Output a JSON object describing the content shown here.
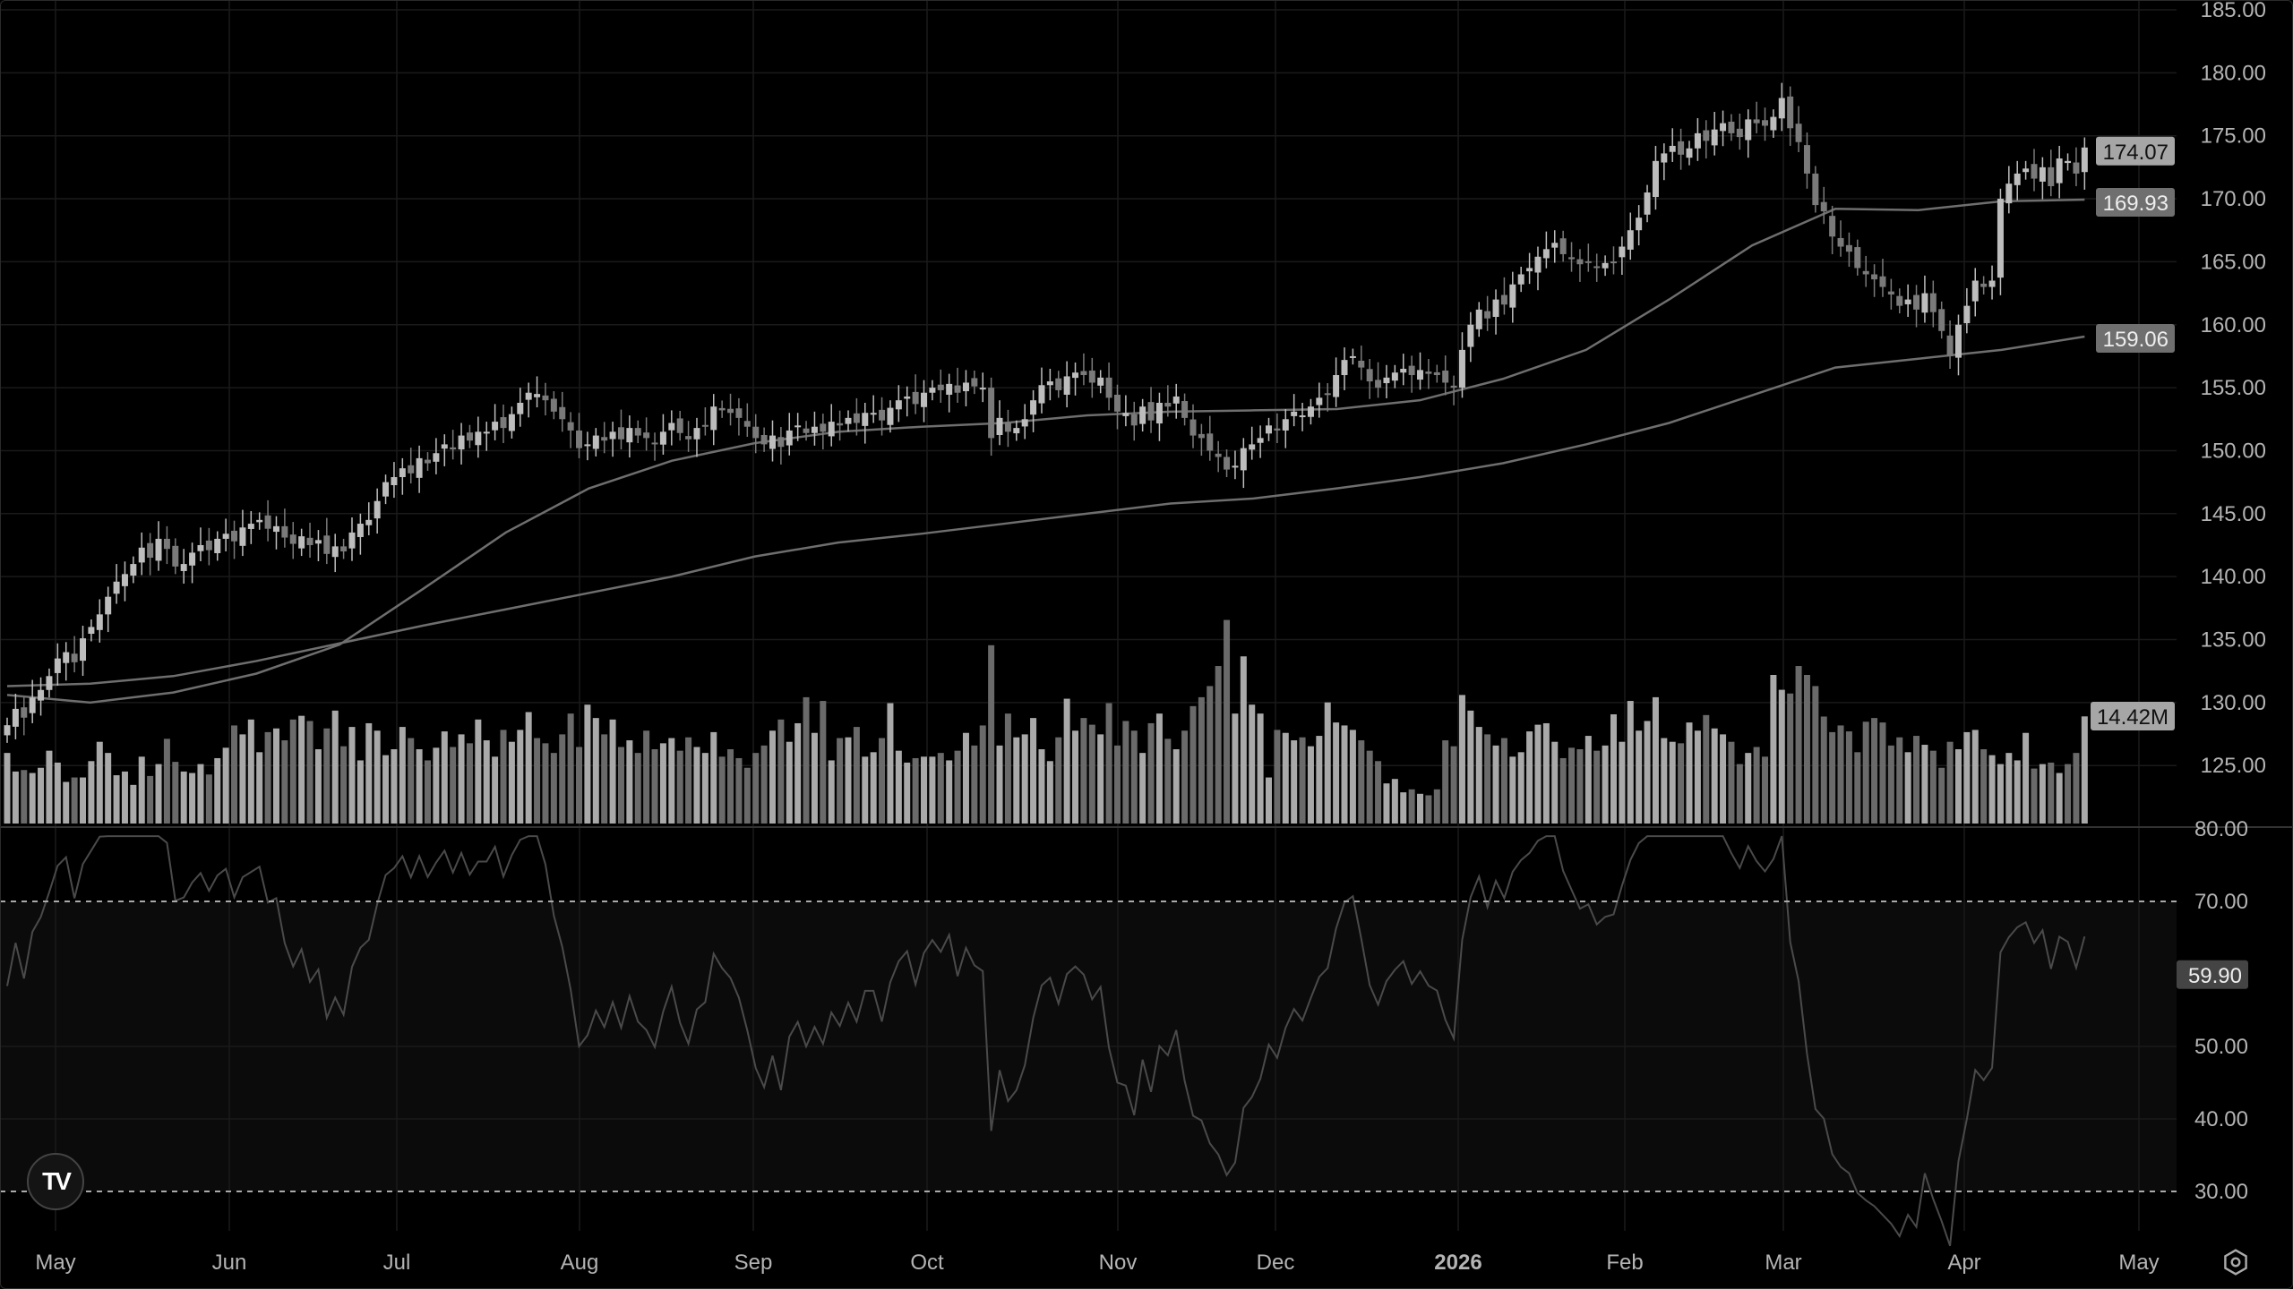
{
  "chart_data": {
    "type": "candlestick",
    "price_axis": {
      "ticks": [
        "185.00",
        "180.00",
        "175.00",
        "170.00",
        "165.00",
        "160.00",
        "155.00",
        "150.00",
        "145.00",
        "140.00",
        "135.00",
        "130.00",
        "125.00"
      ],
      "range": [
        123.5,
        185
      ]
    },
    "time_axis": {
      "ticks": [
        "May",
        "Jun",
        "Jul",
        "Aug",
        "Sep",
        "Oct",
        "Nov",
        "Dec",
        "2026",
        "Feb",
        "Mar",
        "Apr",
        "May"
      ],
      "bold_tick": "2026"
    },
    "closes": [
      128.2,
      129.5,
      128.8,
      130.4,
      131.0,
      132.1,
      133.5,
      134.0,
      133.2,
      135.1,
      136.0,
      137.0,
      138.4,
      139.6,
      140.2,
      141.0,
      142.3,
      141.5,
      143.0,
      142.2,
      140.8,
      141.0,
      141.9,
      142.5,
      142.1,
      143.0,
      143.4,
      142.8,
      143.9,
      144.2,
      144.5,
      143.8,
      144.0,
      143.1,
      142.6,
      143.2,
      142.5,
      142.9,
      141.8,
      142.4,
      142.0,
      143.5,
      144.2,
      144.5,
      146.0,
      147.5,
      147.9,
      148.6,
      148.2,
      149.4,
      149.0,
      149.8,
      150.5,
      150.1,
      151.2,
      150.8,
      151.5,
      151.5,
      152.3,
      151.8,
      152.9,
      153.8,
      154.6,
      154.5,
      154.0,
      153.1,
      152.5,
      151.6,
      150.2,
      150.5,
      151.2,
      150.8,
      151.5,
      150.9,
      151.8,
      151.2,
      151.0,
      150.6,
      151.5,
      152.2,
      151.4,
      150.9,
      151.8,
      152.0,
      153.5,
      153.2,
      153.0,
      152.6,
      151.9,
      151.0,
      150.5,
      151.2,
      150.3,
      151.6,
      152.0,
      151.4,
      151.9,
      151.5,
      152.3,
      152.0,
      152.6,
      152.2,
      153.0,
      153.0,
      152.4,
      153.4,
      154.0,
      154.3,
      153.7,
      154.6,
      155.0,
      154.8,
      155.3,
      154.6,
      155.4,
      155.1,
      155.0,
      151.0,
      152.6,
      151.5,
      151.8,
      152.5,
      154.0,
      155.2,
      155.5,
      154.8,
      155.9,
      156.2,
      156.0,
      155.4,
      155.8,
      154.2,
      153.1,
      153.0,
      152.0,
      153.5,
      152.4,
      153.8,
      153.5,
      154.3,
      152.6,
      151.2,
      151.0,
      150.0,
      149.5,
      148.5,
      148.8,
      150.2,
      150.5,
      151.0,
      152.0,
      151.6,
      152.5,
      153.1,
      152.8,
      153.5,
      154.2,
      154.5,
      156.0,
      157.2,
      157.5,
      156.6,
      155.5,
      155.0,
      155.8,
      156.2,
      156.5,
      156.0,
      156.4,
      156.1,
      156.0,
      155.4,
      155.0,
      158.0,
      160.0,
      161.2,
      160.5,
      162.0,
      161.6,
      163.2,
      164.0,
      164.5,
      165.4,
      166.0,
      166.5,
      165.6,
      165.2,
      164.8,
      165.0,
      164.6,
      164.9,
      165.0,
      166.2,
      167.5,
      168.5,
      170.5,
      173.0,
      173.6,
      174.2,
      173.5,
      174.0,
      175.2,
      174.6,
      175.5,
      176.0,
      175.2,
      174.9,
      176.3,
      176.0,
      175.8,
      176.5,
      178.0,
      175.6,
      174.5,
      172.0,
      169.5,
      169.0,
      167.0,
      166.2,
      165.8,
      164.5,
      164.0,
      163.6,
      163.0,
      162.4,
      161.5,
      162.0,
      161.2,
      162.5,
      161.0,
      159.5,
      157.5,
      160.0,
      161.5,
      163.5,
      163.0,
      163.5,
      170.0,
      171.2,
      172.0,
      172.4,
      171.6,
      172.5,
      171.0,
      173.2,
      173.0,
      172.0,
      174.07
    ],
    "volume_millions": [
      9.5,
      7.0,
      7.2,
      6.8,
      7.5,
      9.8,
      8.2,
      5.6,
      6.2,
      6.2,
      8.4,
      11.0,
      9.5,
      6.5,
      7.0,
      5.2,
      9.0,
      6.4,
      8.0,
      11.4,
      8.3,
      7.0,
      6.8,
      8.0,
      6.6,
      8.8,
      10.2,
      13.2,
      12.0,
      14.0,
      9.6,
      12.3,
      12.8,
      11.2,
      14.0,
      14.5,
      13.8,
      10.0,
      12.8,
      15.2,
      10.4,
      13.0,
      8.5,
      13.5,
      12.5,
      9.2,
      10.0,
      13.0,
      11.5,
      10.0,
      8.5,
      10.2,
      12.4,
      10.3,
      12.0,
      10.8,
      14.0,
      11.2,
      9.0,
      12.6,
      11.0,
      12.6,
      15.0,
      11.5,
      10.8,
      9.5,
      12.0,
      14.8,
      10.3,
      16.0,
      14.2,
      12.0,
      14.0,
      10.3,
      11.2,
      9.5,
      12.5,
      10.0,
      10.8,
      11.5,
      9.8,
      11.6,
      10.3,
      9.5,
      12.3,
      9.0,
      10.0,
      8.8,
      7.5,
      9.5,
      10.5,
      12.5,
      14.0,
      11.0,
      13.5,
      17.0,
      12.2,
      16.5,
      8.5,
      11.5,
      11.6,
      13.0,
      9.0,
      9.6,
      11.5,
      16.2,
      9.8,
      8.2,
      8.8,
      9.0,
      9.0,
      9.5,
      8.5,
      9.8,
      12.2,
      10.5,
      13.2,
      24.0,
      10.5,
      14.8,
      11.6,
      12.0,
      14.2,
      10.0,
      8.4,
      11.6,
      16.8,
      12.5,
      14.2,
      13.3,
      12.0,
      16.2,
      10.5,
      13.8,
      12.5,
      9.5,
      13.5,
      14.8,
      11.4,
      10.0,
      12.5,
      15.8,
      17.0,
      18.5,
      21.2,
      27.4,
      14.8,
      22.5,
      16.0,
      14.8,
      6.2,
      12.6,
      12.2,
      11.2,
      11.6,
      10.4,
      11.8,
      16.3,
      13.6,
      13.2,
      12.6,
      11.2,
      9.8,
      8.4,
      5.4,
      6.0,
      4.2,
      4.6,
      4.0,
      3.8,
      4.6,
      11.2,
      10.4,
      17.3,
      15.2,
      13.0,
      12.0,
      10.5,
      11.5,
      9.0,
      9.6,
      12.4,
      13.3,
      13.5,
      11.0,
      8.8,
      10.2,
      10.0,
      11.8,
      9.8,
      10.5,
      14.7,
      11.0,
      16.5,
      12.5,
      13.8,
      17.0,
      11.5,
      11.0,
      10.8,
      13.6,
      12.5,
      14.6,
      12.8,
      12.0,
      11.0,
      8.0,
      9.5,
      10.3,
      9.0,
      20.0,
      18.0,
      17.5,
      21.2,
      20.0,
      18.5,
      14.4,
      12.3,
      13.2,
      12.4,
      9.6,
      13.7,
      14.2,
      13.6,
      10.5,
      11.6,
      9.6,
      11.8,
      10.6,
      9.8,
      7.5,
      11.0,
      10.0,
      12.3,
      12.6,
      10.0,
      9.2,
      8.0,
      9.5,
      8.5,
      12.2,
      7.4,
      8.0,
      8.2,
      6.8,
      8.0,
      9.5,
      14.42
    ],
    "moving_average_1": [
      130.6,
      130.0,
      130.8,
      132.3,
      134.6,
      139.0,
      143.5,
      147.0,
      149.2,
      150.6,
      151.5,
      151.9,
      152.2,
      152.8,
      153.1,
      153.2,
      153.3,
      154.0,
      155.7,
      158.0,
      162.0,
      166.3,
      169.2,
      169.1,
      169.8,
      169.93
    ],
    "moving_average_2": [
      131.3,
      131.5,
      132.1,
      133.3,
      134.7,
      136.1,
      137.4,
      138.7,
      140.0,
      141.6,
      142.7,
      143.4,
      144.2,
      145.0,
      145.8,
      146.2,
      147.0,
      147.9,
      149.0,
      150.5,
      152.2,
      154.4,
      156.6,
      157.3,
      158.0,
      159.06
    ],
    "last_values": {
      "price": "174.07",
      "ma1": "169.93",
      "ma2": "159.06",
      "volume": "14.42M",
      "rsi": "59.90"
    },
    "rsi": {
      "ticks": [
        "80.00",
        "70.00",
        "50.00",
        "40.00",
        "30.00"
      ],
      "range": [
        30,
        80
      ],
      "overbought": 70,
      "oversold": 30,
      "period": 14
    },
    "colors": {
      "background": "#000000",
      "up": "#bdbdbd",
      "down": "#7a7a7a",
      "grid": "#1a1a1a",
      "line": "#6e6e6e",
      "text": "#b4b4b4"
    }
  },
  "logo_text": "TV"
}
